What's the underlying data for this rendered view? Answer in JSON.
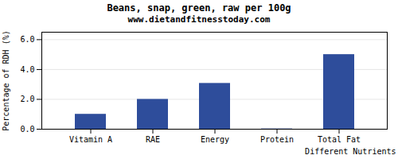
{
  "chart_data": {
    "type": "bar",
    "title": "Beans, snap, green, raw per 100g",
    "subtitle": "www.dietandfitnesstoday.com",
    "xlabel": "Different Nutrients",
    "ylabel": "Percentage of RDH (%)",
    "categories": [
      "Vitamin A",
      "RAE",
      "Energy",
      "Protein",
      "Total Fat"
    ],
    "values": [
      1.0,
      2.0,
      3.07,
      0.02,
      5.0
    ],
    "color": "#2e4d9b",
    "ylim": [
      0,
      6.5
    ],
    "yticks": [
      0,
      2,
      4,
      6
    ],
    "grid": true
  }
}
